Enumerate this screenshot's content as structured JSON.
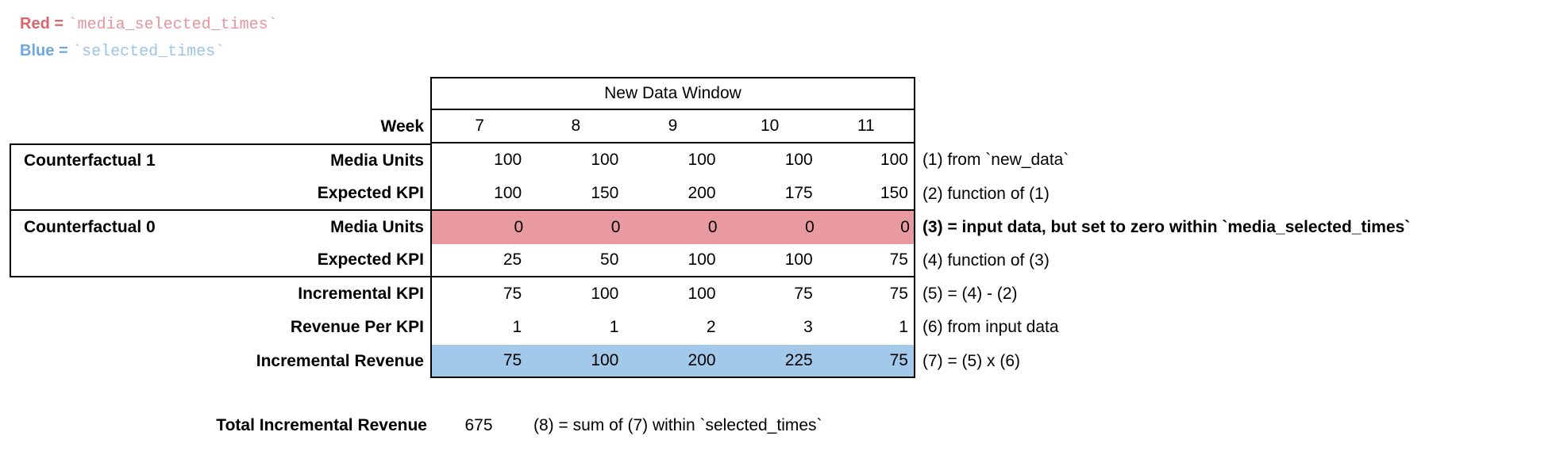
{
  "legend": {
    "red_label": "Red = ",
    "red_code": "`media_selected_times`",
    "blue_label": "Blue = ",
    "blue_code": "`selected_times`"
  },
  "table": {
    "header": "New Data Window",
    "week_label": "Week",
    "weeks": [
      "7",
      "8",
      "9",
      "10",
      "11"
    ],
    "groups": {
      "cf1": "Counterfactual 1",
      "cf0": "Counterfactual 0"
    },
    "rows": [
      {
        "label": "Media Units",
        "values": [
          "100",
          "100",
          "100",
          "100",
          "100"
        ],
        "note": "(1) from `new_data`"
      },
      {
        "label": "Expected KPI",
        "values": [
          "100",
          "150",
          "200",
          "175",
          "150"
        ],
        "note": "(2) function of (1)"
      },
      {
        "label": "Media Units",
        "values": [
          "0",
          "0",
          "0",
          "0",
          "0"
        ],
        "note": "(3) = input data, but set to zero within `media_selected_times`",
        "highlight": "red",
        "note_bold": true
      },
      {
        "label": "Expected KPI",
        "values": [
          "25",
          "50",
          "100",
          "100",
          "75"
        ],
        "note": "(4) function of (3)"
      },
      {
        "label": "Incremental KPI",
        "values": [
          "75",
          "100",
          "100",
          "75",
          "75"
        ],
        "note": "(5) = (4) - (2)"
      },
      {
        "label": "Revenue Per KPI",
        "values": [
          "1",
          "1",
          "2",
          "3",
          "1"
        ],
        "note": "(6) from input data"
      },
      {
        "label": "Incremental Revenue",
        "values": [
          "75",
          "100",
          "200",
          "225",
          "75"
        ],
        "note": "(7) = (5) x (6)",
        "highlight": "blue"
      }
    ],
    "total": {
      "label": "Total Incremental Revenue",
      "value": "675",
      "note": "(8) = sum of (7) within `selected_times`"
    }
  },
  "colors": {
    "red_fill": "#e89aa0",
    "blue_fill": "#a2c8ea",
    "red_text": "#d9646a",
    "red_code_text": "#e8959c",
    "blue_text": "#6fa8dc",
    "blue_code_text": "#9cc4e8",
    "border": "#000000"
  }
}
